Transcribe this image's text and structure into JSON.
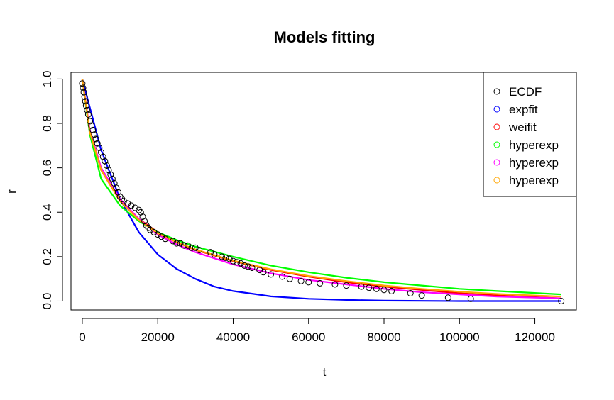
{
  "chart_data": {
    "type": "line",
    "title": "Models fitting",
    "xlabel": "t",
    "ylabel": "r",
    "xlim": [
      -3000,
      131000
    ],
    "ylim": [
      -0.04,
      1.03
    ],
    "x_ticks": [
      0,
      20000,
      40000,
      60000,
      80000,
      100000,
      120000
    ],
    "x_tick_labels": [
      "0",
      "20000",
      "40000",
      "60000",
      "80000",
      "100000",
      "120000"
    ],
    "y_ticks": [
      0.0,
      0.2,
      0.4,
      0.6,
      0.8,
      1.0
    ],
    "y_tick_labels": [
      "0.0",
      "0.2",
      "0.4",
      "0.6",
      "0.8",
      "1.0"
    ],
    "grid": false,
    "legend_position": "top-right",
    "legend": [
      {
        "label": "ECDF",
        "color": "#000000"
      },
      {
        "label": "expfit",
        "color": "#0000ff"
      },
      {
        "label": "weifit",
        "color": "#ff0000"
      },
      {
        "label": "hyperexp",
        "color": "#00ff00"
      },
      {
        "label": "hyperexp",
        "color": "#ff00ff"
      },
      {
        "label": "hyperexp",
        "color": "#ffa500"
      }
    ],
    "points": {
      "name": "ECDF",
      "color": "#000000",
      "x": [
        0,
        200,
        400,
        600,
        800,
        1000,
        1300,
        1600,
        2000,
        2400,
        2800,
        3200,
        3600,
        4000,
        4500,
        5000,
        5500,
        6000,
        6500,
        7000,
        7500,
        8000,
        8500,
        9000,
        9500,
        10000,
        10500,
        11000,
        12000,
        13000,
        14000,
        15000,
        15500,
        16000,
        16500,
        17000,
        17500,
        18000,
        19000,
        20000,
        21000,
        22000,
        24000,
        25000,
        26000,
        27000,
        28000,
        29000,
        30000,
        31000,
        34000,
        35000,
        37000,
        38000,
        39000,
        40000,
        41000,
        42000,
        43000,
        44000,
        45000,
        47000,
        48000,
        50000,
        53000,
        55000,
        58000,
        60000,
        63000,
        67000,
        70000,
        74000,
        76000,
        78000,
        80000,
        82000,
        87000,
        90000,
        97000,
        103000,
        127000
      ],
      "y": [
        0.98,
        0.96,
        0.94,
        0.92,
        0.9,
        0.88,
        0.86,
        0.84,
        0.81,
        0.79,
        0.77,
        0.75,
        0.73,
        0.71,
        0.69,
        0.67,
        0.65,
        0.63,
        0.61,
        0.59,
        0.57,
        0.55,
        0.53,
        0.51,
        0.49,
        0.47,
        0.46,
        0.45,
        0.44,
        0.43,
        0.42,
        0.41,
        0.4,
        0.38,
        0.36,
        0.34,
        0.33,
        0.32,
        0.31,
        0.3,
        0.29,
        0.28,
        0.27,
        0.26,
        0.26,
        0.25,
        0.25,
        0.24,
        0.24,
        0.23,
        0.22,
        0.21,
        0.2,
        0.195,
        0.19,
        0.18,
        0.175,
        0.17,
        0.16,
        0.155,
        0.15,
        0.14,
        0.13,
        0.12,
        0.11,
        0.1,
        0.09,
        0.085,
        0.08,
        0.075,
        0.07,
        0.065,
        0.06,
        0.055,
        0.05,
        0.045,
        0.035,
        0.025,
        0.015,
        0.01,
        0.0
      ]
    },
    "series": [
      {
        "name": "expfit",
        "color": "#0000ff",
        "x": [
          0,
          5000,
          10000,
          15000,
          20000,
          25000,
          30000,
          35000,
          40000,
          50000,
          60000,
          70000,
          80000,
          90000,
          100000,
          110000,
          127000
        ],
        "y": [
          1.0,
          0.68,
          0.46,
          0.31,
          0.21,
          0.145,
          0.1,
          0.065,
          0.045,
          0.021,
          0.01,
          0.005,
          0.002,
          0.001,
          0.0,
          0.0,
          0.0
        ]
      },
      {
        "name": "weifit",
        "color": "#ff0000",
        "x": [
          0,
          2000,
          5000,
          10000,
          15000,
          20000,
          25000,
          30000,
          40000,
          50000,
          60000,
          70000,
          80000,
          90000,
          100000,
          110000,
          127000
        ],
        "y": [
          1.0,
          0.76,
          0.59,
          0.45,
          0.37,
          0.31,
          0.265,
          0.23,
          0.18,
          0.14,
          0.11,
          0.085,
          0.065,
          0.05,
          0.035,
          0.025,
          0.012
        ]
      },
      {
        "name": "hyperexp",
        "color": "#00ff00",
        "x": [
          0,
          2000,
          5000,
          10000,
          15000,
          20000,
          25000,
          30000,
          40000,
          50000,
          60000,
          70000,
          80000,
          90000,
          100000,
          110000,
          127000
        ],
        "y": [
          1.0,
          0.75,
          0.55,
          0.43,
          0.36,
          0.31,
          0.275,
          0.245,
          0.2,
          0.16,
          0.13,
          0.105,
          0.085,
          0.07,
          0.055,
          0.045,
          0.03
        ]
      },
      {
        "name": "hyperexp",
        "color": "#ff00ff",
        "x": [
          0,
          2000,
          5000,
          10000,
          15000,
          20000,
          25000,
          30000,
          40000,
          50000,
          60000,
          70000,
          80000,
          90000,
          100000,
          110000,
          127000
        ],
        "y": [
          1.0,
          0.77,
          0.6,
          0.46,
          0.37,
          0.3,
          0.255,
          0.22,
          0.165,
          0.125,
          0.095,
          0.075,
          0.055,
          0.04,
          0.03,
          0.02,
          0.012
        ]
      },
      {
        "name": "hyperexp",
        "color": "#ffa500",
        "x": [
          0,
          2000,
          5000,
          10000,
          15000,
          20000,
          25000,
          30000,
          40000,
          50000,
          60000,
          70000,
          80000,
          90000,
          100000,
          110000,
          127000
        ],
        "y": [
          1.0,
          0.76,
          0.59,
          0.45,
          0.365,
          0.305,
          0.265,
          0.232,
          0.182,
          0.143,
          0.113,
          0.09,
          0.07,
          0.055,
          0.042,
          0.032,
          0.02
        ]
      }
    ]
  }
}
